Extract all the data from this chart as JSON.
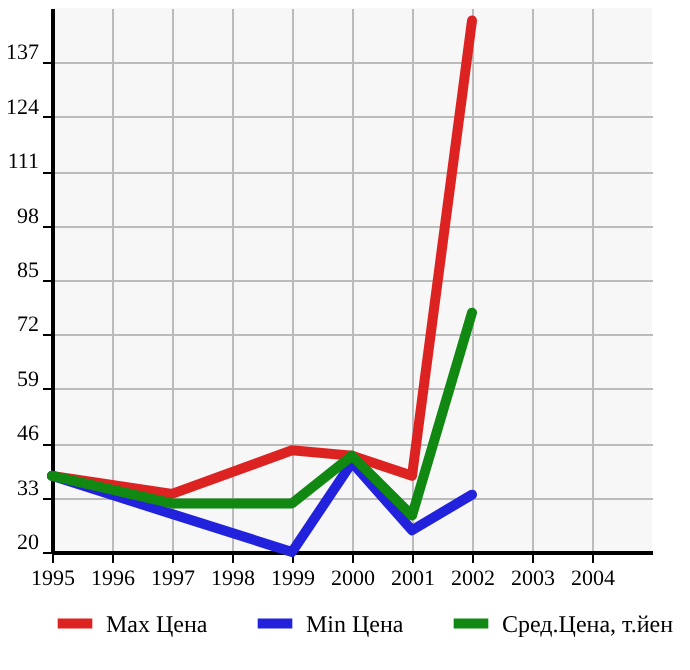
{
  "chart_data": {
    "type": "line",
    "x": [
      1995,
      1997,
      1999,
      2000,
      2001,
      2002
    ],
    "series": [
      {
        "name": "Max Цена",
        "color": "#dd2222",
        "values": [
          38.2,
          33.9,
          44.3,
          43,
          38.2,
          147
        ]
      },
      {
        "name": "Min Цена",
        "color": "#2222dd",
        "values": [
          38.2,
          29.1,
          20,
          41.4,
          25.2,
          33.7
        ]
      },
      {
        "name": "Сред.Цена, т.йен",
        "color": "#118811",
        "values": [
          38.2,
          31.6,
          31.6,
          43,
          28.7,
          77.2
        ]
      }
    ],
    "xlim": [
      1995,
      2005
    ],
    "xticks": [
      1995,
      1996,
      1997,
      1998,
      1999,
      2000,
      2001,
      2002,
      2003,
      2004
    ],
    "ylim": [
      20,
      150
    ],
    "yticks": [
      20,
      33,
      46,
      59,
      72,
      85,
      98,
      111,
      124,
      137
    ],
    "grid": true,
    "legend": "bottom",
    "marker": "none",
    "line_style": "solid"
  }
}
